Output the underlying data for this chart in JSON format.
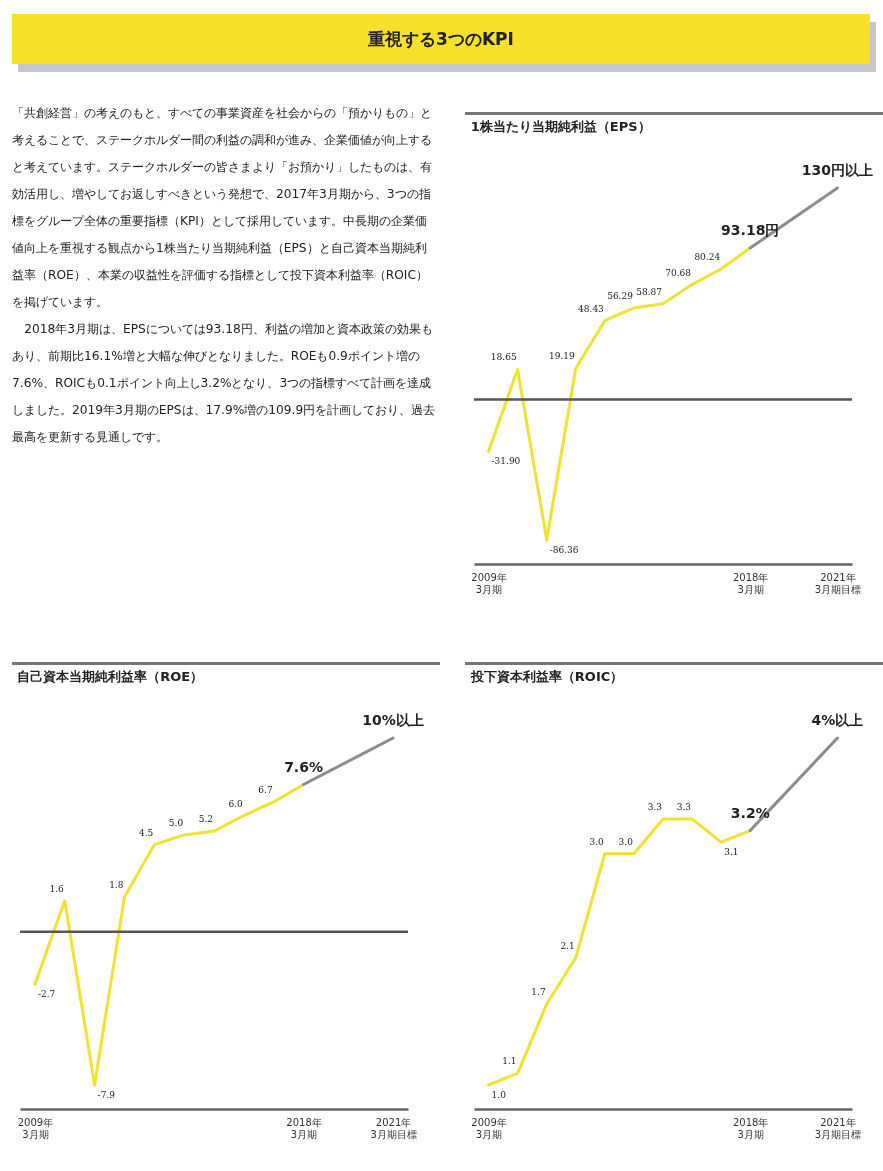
{
  "chart_data": [
    {
      "type": "other",
      "title": "重視する3つのKPI",
      "annotations": [
        "「共創経営」の考えのもと、すべての事業資産を社会からの「預かりもの」と考えることで、ステークホルダー間の利益の調和が進み、企業価値が向上すると考えています。ステークホルダーの皆さまより「お預かり」したものは、有効活用し、増やしてお返しすべきという発想で、2017年3月期から、3つの指標をグループ全体の重要指標（KPI）として採用しています。中長期の企業価値向上を重視する観点から1株当たり当期純利益（EPS）と自己資本当期純利益率（ROE）、本業の収益性を評価する指標として投下資本利益率（ROIC）を掲げています。",
        "2018年3月期は、EPSについては93.18円、利益の増加と資本政策の効果もあり、前期比16.1%増と大幅な伸びとなりました。ROEも0.9ポイント増の7.6%、ROICも0.1ポイント向上し3.2%となり、3つの指標すべて計画を達成しました。2019年3月期のEPSは、17.9%増の109.9円を計画しており、過去最高を更新する見通しです。"
      ]
    },
    {
      "type": "line",
      "title": "1株当たり当期純利益（EPS）",
      "categories": [
        "2009年\n3月期",
        null,
        null,
        null,
        null,
        null,
        null,
        null,
        null,
        "2018年\n3月期",
        null,
        null,
        "2021年\n3月期目標"
      ],
      "tick_labels": "x",
      "ref_lines": [
        {
          "axis": "y",
          "value": 0,
          "color": "#555555"
        }
      ],
      "series": [
        {
          "color": "#f0e22e",
          "values": [
            -31.9,
            18.65,
            -86.36,
            19.19,
            48.43,
            56.29,
            58.87,
            70.68,
            80.24,
            93.18,
            null,
            null,
            null
          ],
          "value_labels": [
            "-31.90",
            "18.65",
            "-86.36",
            "19.19",
            "48.43",
            "56.29",
            "58.87",
            "70.68",
            "80.24",
            "93.18円",
            null,
            null,
            null
          ]
        },
        {
          "color": "#8c8c8c",
          "values": [
            null,
            null,
            null,
            null,
            null,
            null,
            null,
            null,
            null,
            93.18,
            null,
            null,
            130
          ],
          "value_labels": [
            null,
            null,
            null,
            null,
            null,
            null,
            null,
            null,
            null,
            null,
            null,
            null,
            "130円以上"
          ]
        }
      ]
    },
    {
      "type": "line",
      "title": "自己資本当期純利益率（ROE）",
      "categories": [
        "2009年\n3月期",
        null,
        null,
        null,
        null,
        null,
        null,
        null,
        null,
        "2018年\n3月期",
        null,
        null,
        "2021年\n3月期目標"
      ],
      "tick_labels": "x",
      "ref_lines": [
        {
          "axis": "y",
          "value": 0,
          "color": "#555555"
        }
      ],
      "series": [
        {
          "color": "#f0e22e",
          "values": [
            -2.7,
            1.6,
            -7.9,
            1.8,
            4.5,
            5.0,
            5.2,
            6.0,
            6.7,
            7.6,
            null,
            null,
            null
          ],
          "value_labels": [
            "-2.7",
            "1.6",
            "-7.9",
            "1.8",
            "4.5",
            "5.0",
            "5.2",
            "6.0",
            "6.7",
            "7.6%",
            null,
            null,
            null
          ]
        },
        {
          "color": "#8c8c8c",
          "values": [
            null,
            null,
            null,
            null,
            null,
            null,
            null,
            null,
            null,
            7.6,
            null,
            null,
            10
          ],
          "value_labels": [
            null,
            null,
            null,
            null,
            null,
            null,
            null,
            null,
            null,
            null,
            null,
            null,
            "10%以上"
          ]
        }
      ]
    },
    {
      "type": "line",
      "title": "投下資本利益率（ROIC）",
      "categories": [
        "2009年\n3月期",
        null,
        null,
        null,
        null,
        null,
        null,
        null,
        null,
        "2018年\n3月期",
        null,
        null,
        "2021年\n3月期目標"
      ],
      "tick_labels": "x",
      "series": [
        {
          "color": "#f0e22e",
          "values": [
            1.0,
            1.1,
            1.7,
            2.1,
            3.0,
            3.0,
            3.3,
            3.3,
            3.1,
            3.2,
            null,
            null,
            null
          ],
          "value_labels": [
            "1.0",
            "1.1",
            "1.7",
            "2.1",
            "3.0",
            "3.0",
            "3.3",
            "3.3",
            "3.1",
            "3.2%",
            null,
            null,
            null
          ]
        },
        {
          "color": "#8c8c8c",
          "values": [
            null,
            null,
            null,
            null,
            null,
            null,
            null,
            null,
            null,
            3.2,
            null,
            null,
            4
          ],
          "value_labels": [
            null,
            null,
            null,
            null,
            null,
            null,
            null,
            null,
            null,
            null,
            null,
            null,
            "4%以上"
          ]
        }
      ]
    }
  ]
}
